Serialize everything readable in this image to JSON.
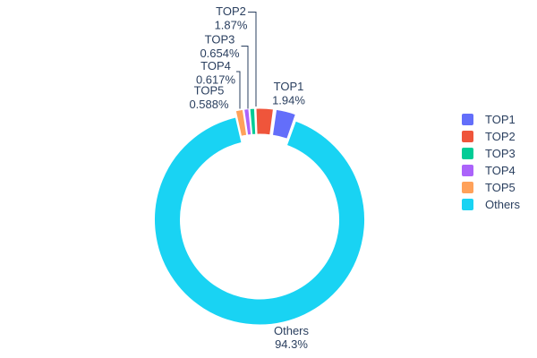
{
  "chart_data": {
    "type": "pie",
    "title": "",
    "labels": [
      "TOP1",
      "TOP2",
      "TOP3",
      "TOP4",
      "TOP5",
      "Others"
    ],
    "values": [
      1.94,
      1.87,
      0.654,
      0.617,
      0.588,
      94.3
    ],
    "unit": "percent",
    "percent_labels": [
      "1.94%",
      "1.87%",
      "0.654%",
      "0.617%",
      "0.588%",
      "94.3%"
    ],
    "colors": [
      "#636efa",
      "#ef553b",
      "#00cc96",
      "#ab63fa",
      "#ffa15a",
      "#19d3f3"
    ],
    "hole_ratio": 0.75,
    "pulled_slices": [
      "TOP1",
      "TOP2",
      "TOP3",
      "TOP4",
      "TOP5"
    ],
    "label_style": "outside-with-leader-lines",
    "legend_position": "right",
    "legend_items": [
      "TOP1",
      "TOP2",
      "TOP3",
      "TOP4",
      "TOP5",
      "Others"
    ],
    "text_color": "#2a3f5f",
    "background_color": "#ffffff"
  }
}
